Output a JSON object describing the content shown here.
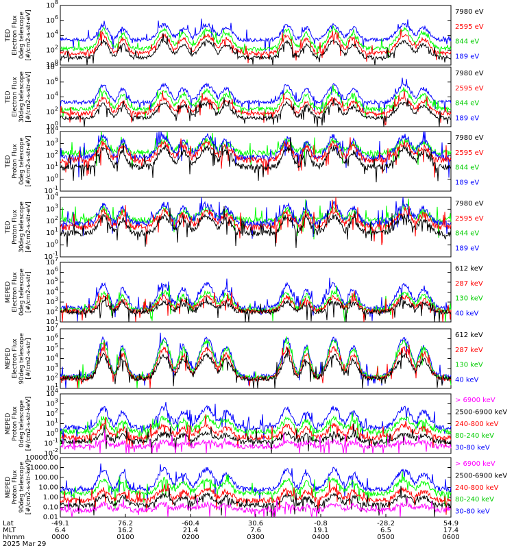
{
  "chart_data": {
    "type": "line",
    "date": "2025 Mar 29",
    "panels": [
      {
        "ylabel": [
          "TED",
          "Electron Flux",
          "0deg telescope",
          "[#/cm2-s-str-eV]"
        ],
        "yticks": [
          {
            "label": "10",
            "exp": "0",
            "v": 0
          },
          {
            "label": "10",
            "exp": "2",
            "v": 2
          },
          {
            "label": "10",
            "exp": "4",
            "v": 4
          },
          {
            "label": "10",
            "exp": "6",
            "v": 6
          },
          {
            "label": "10",
            "exp": "8",
            "v": 8
          }
        ],
        "ylim": [
          0,
          8
        ],
        "legend": [
          {
            "text": "7980 eV",
            "color": "#000000"
          },
          {
            "text": "2595 eV",
            "color": "#ff0000"
          },
          {
            "text": "844 eV",
            "color": "#00cc00"
          },
          {
            "text": "189 eV",
            "color": "#0000ff"
          }
        ],
        "series": [
          {
            "color": "#0000ff",
            "base": 3.4,
            "peak": 5.4,
            "bg": 3.1
          },
          {
            "color": "#00ff00",
            "base": 2.2,
            "peak": 4.8,
            "bg": 1.8
          },
          {
            "color": "#ff0000",
            "base": 1.6,
            "peak": 4.0,
            "bg": 1.2
          },
          {
            "color": "#000000",
            "base": 1.0,
            "peak": 3.2,
            "bg": 0.6
          }
        ]
      },
      {
        "ylabel": [
          "TED",
          "Electron Flux",
          "30deg telescope",
          "[#/cm2-s-str-eV]"
        ],
        "yticks": [
          {
            "label": "10",
            "exp": "0",
            "v": 0
          },
          {
            "label": "10",
            "exp": "2",
            "v": 2
          },
          {
            "label": "10",
            "exp": "4",
            "v": 4
          },
          {
            "label": "10",
            "exp": "6",
            "v": 6
          },
          {
            "label": "10",
            "exp": "8",
            "v": 8
          }
        ],
        "ylim": [
          0,
          8
        ],
        "legend": [
          {
            "text": "7980 eV",
            "color": "#000000"
          },
          {
            "text": "2595 eV",
            "color": "#ff0000"
          },
          {
            "text": "844 eV",
            "color": "#00cc00"
          },
          {
            "text": "189 eV",
            "color": "#0000ff"
          }
        ],
        "series": [
          {
            "color": "#0000ff",
            "base": 3.2,
            "peak": 5.6,
            "bg": 3.3
          },
          {
            "color": "#00ff00",
            "base": 2.4,
            "peak": 4.8,
            "bg": 1.9
          },
          {
            "color": "#ff0000",
            "base": 1.8,
            "peak": 3.8,
            "bg": 1.2
          },
          {
            "color": "#000000",
            "base": 1.2,
            "peak": 3.2,
            "bg": 0.5
          }
        ]
      },
      {
        "ylabel": [
          "TED",
          "Proton Flux",
          "0deg telescope",
          "[#/cm2-s-str-eV]"
        ],
        "yticks": [
          {
            "label": "10",
            "exp": "-1",
            "v": -1
          },
          {
            "label": "10",
            "exp": "0",
            "v": 0
          },
          {
            "label": "10",
            "exp": "1",
            "v": 1
          },
          {
            "label": "10",
            "exp": "2",
            "v": 2
          },
          {
            "label": "10",
            "exp": "3",
            "v": 3
          },
          {
            "label": "10",
            "exp": "4",
            "v": 4
          }
        ],
        "ylim": [
          -1,
          4
        ],
        "legend": [
          {
            "text": "7980 eV",
            "color": "#000000"
          },
          {
            "text": "2595 eV",
            "color": "#ff0000"
          },
          {
            "text": "844 eV",
            "color": "#00cc00"
          },
          {
            "text": "189 eV",
            "color": "#0000ff"
          }
        ],
        "series": [
          {
            "color": "#00ff00",
            "base": 2.2,
            "peak": 3.2,
            "bg": 2.1
          },
          {
            "color": "#0000ff",
            "base": 1.8,
            "peak": 3.6,
            "bg": 0.6
          },
          {
            "color": "#ff0000",
            "base": 1.6,
            "peak": 3.0,
            "bg": 0.3
          },
          {
            "color": "#000000",
            "base": 1.0,
            "peak": 2.6,
            "bg": -0.2
          }
        ]
      },
      {
        "ylabel": [
          "TED",
          "Proton Flux",
          "30deg telescope",
          "[#/cm2-s-str-eV]"
        ],
        "yticks": [
          {
            "label": "10",
            "exp": "-1",
            "v": -1
          },
          {
            "label": "10",
            "exp": "0",
            "v": 0
          },
          {
            "label": "10",
            "exp": "1",
            "v": 1
          },
          {
            "label": "10",
            "exp": "2",
            "v": 2
          },
          {
            "label": "10",
            "exp": "3",
            "v": 3
          },
          {
            "label": "10",
            "exp": "4",
            "v": 4
          }
        ],
        "ylim": [
          -1,
          4
        ],
        "legend": [
          {
            "text": "7980 eV",
            "color": "#000000"
          },
          {
            "text": "2595 eV",
            "color": "#ff0000"
          },
          {
            "text": "844 eV",
            "color": "#00cc00"
          },
          {
            "text": "189 eV",
            "color": "#0000ff"
          }
        ],
        "series": [
          {
            "color": "#00ff00",
            "base": 2.0,
            "peak": 3.0,
            "bg": 2.1
          },
          {
            "color": "#0000ff",
            "base": 1.8,
            "peak": 3.4,
            "bg": 0.9
          },
          {
            "color": "#ff0000",
            "base": 1.5,
            "peak": 2.8,
            "bg": 0.4
          },
          {
            "color": "#000000",
            "base": 1.0,
            "peak": 2.4,
            "bg": -0.1
          }
        ]
      },
      {
        "ylabel": [
          "MEPED",
          "Electron Flux",
          "0deg telescope",
          "[#/cm2-s-str]"
        ],
        "yticks": [
          {
            "label": "10",
            "exp": "1",
            "v": 1
          },
          {
            "label": "10",
            "exp": "2",
            "v": 2
          },
          {
            "label": "10",
            "exp": "3",
            "v": 3
          },
          {
            "label": "10",
            "exp": "4",
            "v": 4
          },
          {
            "label": "10",
            "exp": "5",
            "v": 5
          },
          {
            "label": "10",
            "exp": "6",
            "v": 6
          },
          {
            "label": "10",
            "exp": "7",
            "v": 7
          }
        ],
        "ylim": [
          1,
          7
        ],
        "legend": [
          {
            "text": "612 keV",
            "color": "#000000"
          },
          {
            "text": "287 keV",
            "color": "#ff0000"
          },
          {
            "text": "130 keV",
            "color": "#00cc00"
          },
          {
            "text": "40 keV",
            "color": "#0000ff"
          }
        ],
        "series": [
          {
            "color": "#0000ff",
            "base": 2.4,
            "peak": 4.8,
            "bg": 2.2
          },
          {
            "color": "#00ff00",
            "base": 2.2,
            "peak": 4.0,
            "bg": 2.0
          },
          {
            "color": "#ff0000",
            "base": 2.1,
            "peak": 3.5,
            "bg": 2.0
          },
          {
            "color": "#000000",
            "base": 2.0,
            "peak": 3.0,
            "bg": 1.9
          }
        ]
      },
      {
        "ylabel": [
          "MEPED",
          "Electron Flux",
          "90deg telescope",
          "[#/cm2-s-str]"
        ],
        "yticks": [
          {
            "label": "10",
            "exp": "1",
            "v": 1
          },
          {
            "label": "10",
            "exp": "2",
            "v": 2
          },
          {
            "label": "10",
            "exp": "3",
            "v": 3
          },
          {
            "label": "10",
            "exp": "4",
            "v": 4
          },
          {
            "label": "10",
            "exp": "5",
            "v": 5
          },
          {
            "label": "10",
            "exp": "6",
            "v": 6
          },
          {
            "label": "10",
            "exp": "7",
            "v": 7
          }
        ],
        "ylim": [
          1,
          7
        ],
        "legend": [
          {
            "text": "612 keV",
            "color": "#000000"
          },
          {
            "text": "287 keV",
            "color": "#ff0000"
          },
          {
            "text": "130 keV",
            "color": "#00cc00"
          },
          {
            "text": "40 keV",
            "color": "#0000ff"
          }
        ],
        "series": [
          {
            "color": "#0000ff",
            "base": 2.2,
            "peak": 6.0,
            "bg": 2.1
          },
          {
            "color": "#00ff00",
            "base": 2.1,
            "peak": 5.7,
            "bg": 2.0
          },
          {
            "color": "#ff0000",
            "base": 2.0,
            "peak": 5.0,
            "bg": 2.0
          },
          {
            "color": "#000000",
            "base": 2.0,
            "peak": 4.3,
            "bg": 1.9
          }
        ]
      },
      {
        "ylabel": [
          "MEPED",
          "Proton Flux",
          "0deg telescope",
          "[#/cm2-s-str-keV]"
        ],
        "yticks": [
          {
            "label": "10",
            "exp": "-2",
            "v": -2
          },
          {
            "label": "10",
            "exp": "-1",
            "v": -1
          },
          {
            "label": "10",
            "exp": "0",
            "v": 0
          },
          {
            "label": "10",
            "exp": "1",
            "v": 1
          },
          {
            "label": "10",
            "exp": "2",
            "v": 2
          },
          {
            "label": "10",
            "exp": "3",
            "v": 3
          },
          {
            "label": "10",
            "exp": "4",
            "v": 4
          }
        ],
        "ylim": [
          -2,
          4
        ],
        "legend": [
          {
            "text": "> 6900 keV",
            "color": "#ff00ff"
          },
          {
            "text": "2500-6900 keV",
            "color": "#000000"
          },
          {
            "text": "240-800 keV",
            "color": "#ff0000"
          },
          {
            "text": "80-240 keV",
            "color": "#00cc00"
          },
          {
            "text": "30-80 keV",
            "color": "#0000ff"
          }
        ],
        "series": [
          {
            "color": "#0000ff",
            "base": 0.6,
            "peak": 2.6,
            "bg": 0.4
          },
          {
            "color": "#00ff00",
            "base": 0.2,
            "peak": 1.6,
            "bg": 0.0
          },
          {
            "color": "#ff0000",
            "base": -0.4,
            "peak": 0.8,
            "bg": -0.6
          },
          {
            "color": "#000000",
            "base": -0.8,
            "peak": 0.0,
            "bg": -1.2
          },
          {
            "color": "#ff00ff",
            "base": -1.3,
            "peak": -0.8,
            "bg": -1.5
          }
        ]
      },
      {
        "ylabel": [
          "MEPED",
          "Proton Flux",
          "90deg telescope",
          "[#/cm2-s-str-keV]"
        ],
        "yticks": [
          {
            "label": "0.01",
            "exp": "",
            "v": -2
          },
          {
            "label": "0.10",
            "exp": "",
            "v": -1
          },
          {
            "label": "1.00",
            "exp": "",
            "v": 0
          },
          {
            "label": "10.00",
            "exp": "",
            "v": 1
          },
          {
            "label": "100.00",
            "exp": "",
            "v": 2
          },
          {
            "label": "1000.00",
            "exp": "",
            "v": 3
          },
          {
            "label": "10000.00",
            "exp": "",
            "v": 4
          }
        ],
        "ylim": [
          -2,
          4
        ],
        "legend": [
          {
            "text": "> 6900 keV",
            "color": "#ff00ff"
          },
          {
            "text": "2500-6900 keV",
            "color": "#000000"
          },
          {
            "text": "240-800 keV",
            "color": "#ff0000"
          },
          {
            "text": "80-240 keV",
            "color": "#00cc00"
          },
          {
            "text": "30-80 keV",
            "color": "#0000ff"
          }
        ],
        "series": [
          {
            "color": "#0000ff",
            "base": 0.8,
            "peak": 2.8,
            "bg": 0.3
          },
          {
            "color": "#00ff00",
            "base": 0.4,
            "peak": 1.8,
            "bg": 0.1
          },
          {
            "color": "#ff0000",
            "base": -0.3,
            "peak": 0.8,
            "bg": -0.6
          },
          {
            "color": "#000000",
            "base": -0.8,
            "peak": 0.2,
            "bg": -1.2
          },
          {
            "color": "#ff00ff",
            "base": -1.3,
            "peak": -0.7,
            "bg": -1.5
          }
        ]
      }
    ],
    "passes": [
      0.11,
      0.265,
      0.375,
      0.58,
      0.7,
      0.88
    ],
    "xaxis": {
      "row_labels": [
        "Lat",
        "MLT",
        "hhmm"
      ],
      "ticks": [
        {
          "lat": "-49.1",
          "mlt": "6.4",
          "time": "0000"
        },
        {
          "lat": "76.2",
          "mlt": "16.2",
          "time": "0100"
        },
        {
          "lat": "-60.4",
          "mlt": "21.4",
          "time": "0200"
        },
        {
          "lat": "30.6",
          "mlt": "7.6",
          "time": "0300"
        },
        {
          "lat": "-0.8",
          "mlt": "19.1",
          "time": "0400"
        },
        {
          "lat": "-28.2",
          "mlt": "6.5",
          "time": "0500"
        },
        {
          "lat": "54.9",
          "mlt": "17.4",
          "time": "0600"
        }
      ]
    }
  }
}
